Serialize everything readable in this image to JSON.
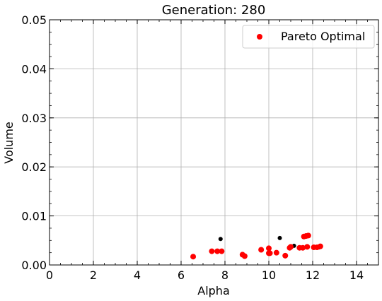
{
  "chart_data": {
    "type": "scatter",
    "title": "Generation: 280",
    "xlabel": "Alpha",
    "ylabel": "Volume",
    "xlim": [
      0,
      15
    ],
    "ylim": [
      0,
      0.05
    ],
    "xticks": [
      0,
      2,
      4,
      6,
      8,
      10,
      12,
      14
    ],
    "xtick_labels": [
      "0",
      "2",
      "4",
      "6",
      "8",
      "10",
      "12",
      "14"
    ],
    "yticks": [
      0,
      0.01,
      0.02,
      0.03,
      0.04,
      0.05
    ],
    "ytick_labels": [
      "0.00",
      "0.01",
      "0.02",
      "0.03",
      "0.04",
      "0.05"
    ],
    "grid": true,
    "legend": {
      "position": "top-right",
      "entries": [
        "Pareto Optimal"
      ]
    },
    "series": [
      {
        "name": "",
        "color": "#000000",
        "points": [
          {
            "x": 7.8,
            "y": 0.0053
          },
          {
            "x": 10.5,
            "y": 0.0055
          },
          {
            "x": 11.15,
            "y": 0.0039
          },
          {
            "x": 12.3,
            "y": 0.0036
          }
        ]
      },
      {
        "name": "Pareto Optimal",
        "color": "#ff0000",
        "points": [
          {
            "x": 6.55,
            "y": 0.0017
          },
          {
            "x": 7.4,
            "y": 0.0028
          },
          {
            "x": 7.65,
            "y": 0.0028
          },
          {
            "x": 7.85,
            "y": 0.0028
          },
          {
            "x": 8.8,
            "y": 0.0021
          },
          {
            "x": 8.9,
            "y": 0.0018
          },
          {
            "x": 9.65,
            "y": 0.0031
          },
          {
            "x": 10.0,
            "y": 0.0034
          },
          {
            "x": 10.0,
            "y": 0.0024
          },
          {
            "x": 10.05,
            "y": 0.0024
          },
          {
            "x": 10.35,
            "y": 0.0025
          },
          {
            "x": 10.75,
            "y": 0.0019
          },
          {
            "x": 10.95,
            "y": 0.0035
          },
          {
            "x": 11.0,
            "y": 0.0037
          },
          {
            "x": 11.4,
            "y": 0.0035
          },
          {
            "x": 11.55,
            "y": 0.0035
          },
          {
            "x": 11.6,
            "y": 0.0058
          },
          {
            "x": 11.7,
            "y": 0.0059
          },
          {
            "x": 11.75,
            "y": 0.0037
          },
          {
            "x": 11.8,
            "y": 0.006
          },
          {
            "x": 12.05,
            "y": 0.0036
          },
          {
            "x": 12.2,
            "y": 0.0036
          },
          {
            "x": 12.35,
            "y": 0.0038
          }
        ]
      }
    ]
  }
}
